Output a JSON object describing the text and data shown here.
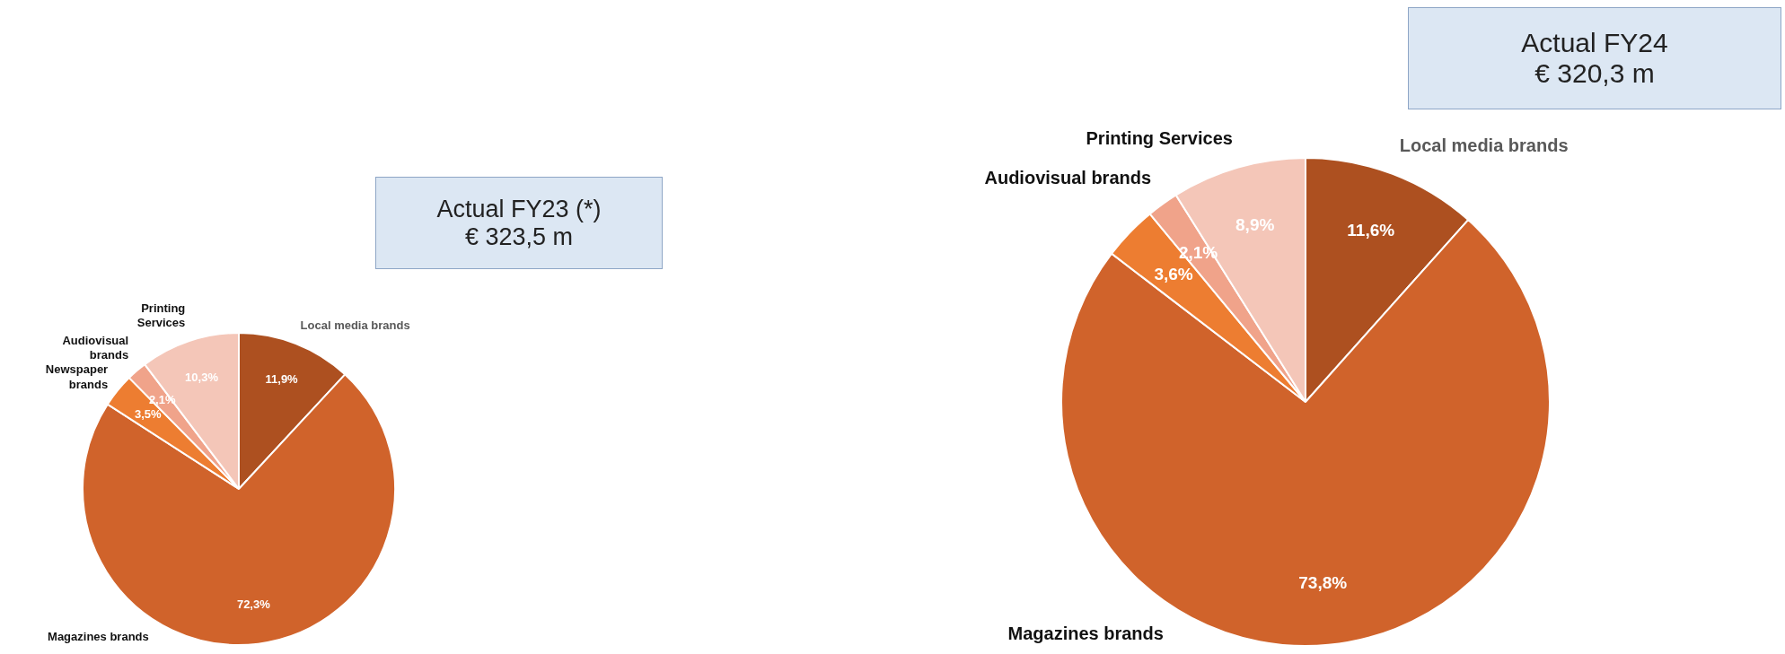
{
  "chart_data": [
    {
      "type": "pie",
      "title": "Actual FY23 (*)",
      "subtitle": "€ 323,5 m",
      "categories": [
        "Local media brands",
        "Magazines brands",
        "Newspaper brands",
        "Audiovisual brands",
        "Printing Services"
      ],
      "values": [
        11.9,
        72.3,
        3.5,
        2.1,
        10.3
      ],
      "value_labels": [
        "11,9%",
        "72,3%",
        "3,5%",
        "2,1%",
        "10,3%"
      ],
      "colors": [
        "#ad5020",
        "#d0632b",
        "#ed7d31",
        "#f0a38a",
        "#f4c6b8"
      ],
      "legend": false
    },
    {
      "type": "pie",
      "title": "Actual FY24",
      "subtitle": "€ 320,3 m",
      "categories": [
        "Local media brands",
        "Magazines brands",
        null,
        "Audiovisual brands",
        "Printing Services"
      ],
      "values": [
        11.6,
        73.8,
        3.6,
        2.1,
        8.9
      ],
      "value_labels": [
        "11,6%",
        "73,8%",
        "3,6%",
        "2,1%",
        "8,9%"
      ],
      "colors": [
        "#ad5020",
        "#d0632b",
        "#ed7d31",
        "#f0a38a",
        "#f4c6b8"
      ],
      "legend": false
    }
  ]
}
